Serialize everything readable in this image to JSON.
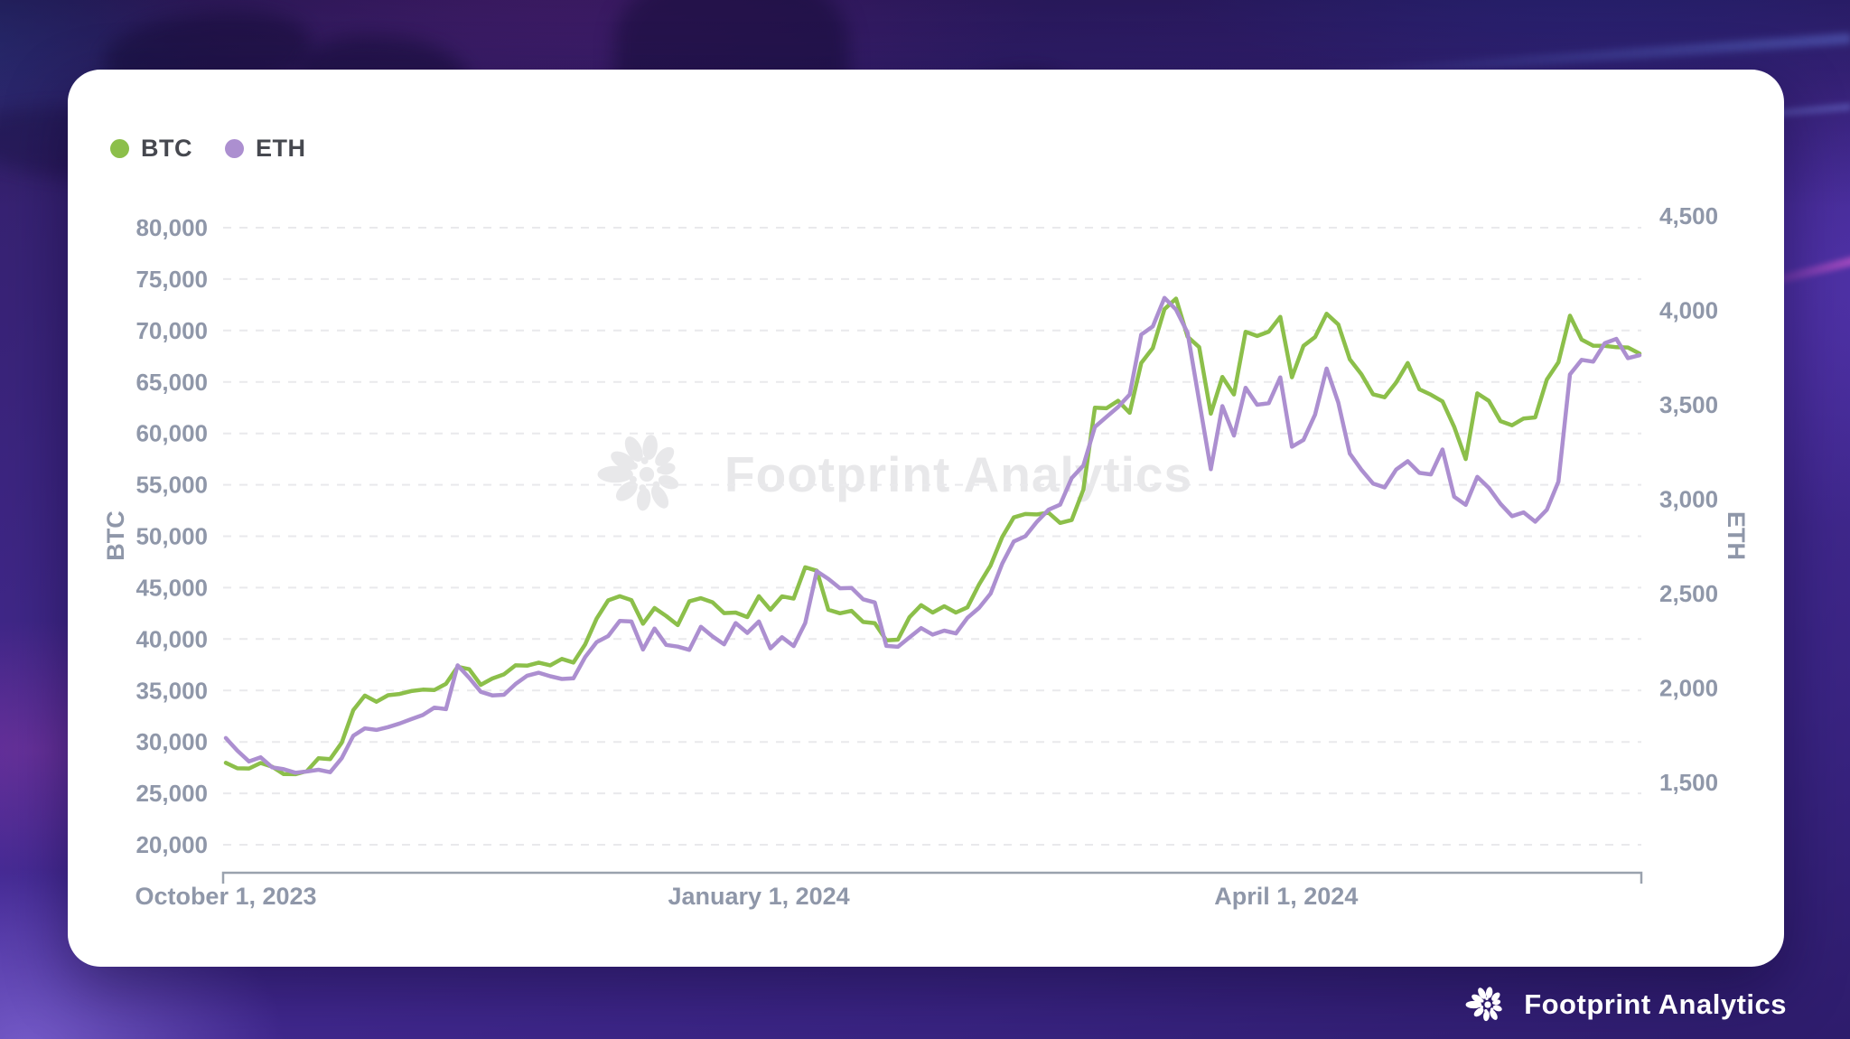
{
  "legend": {
    "items": [
      {
        "label": "BTC",
        "color": "#8cbf4a"
      },
      {
        "label": "ETH",
        "color": "#ac8fd0"
      }
    ]
  },
  "watermark": {
    "text": "Footprint Analytics"
  },
  "footer": {
    "brand": "Footprint Analytics"
  },
  "chart_data": {
    "type": "line",
    "title": "",
    "legend_position": "top-left",
    "grid": "dashed-horizontal",
    "x_start_date": "2023-10-01",
    "x_step_days": 2,
    "x_total_days": 244,
    "x_tick_labels": [
      "October 1, 2023",
      "January 1, 2024",
      "April 1, 2024"
    ],
    "x_tick_day_offsets": [
      0,
      92,
      183
    ],
    "left_axis": {
      "name": "BTC",
      "min": 20000,
      "max": 80000,
      "tick_step": 5000,
      "tick_labels": [
        "80,000",
        "75,000",
        "70,000",
        "65,000",
        "60,000",
        "55,000",
        "50,000",
        "45,000",
        "40,000",
        "35,000",
        "30,000",
        "25,000",
        "20,000"
      ]
    },
    "right_axis": {
      "name": "ETH",
      "min": 1500,
      "max": 4500,
      "tick_step": 500,
      "tick_labels": [
        "4,500",
        "4,000",
        "3,500",
        "3,000",
        "2,500",
        "2,000",
        "1,500"
      ]
    },
    "series": [
      {
        "name": "BTC",
        "axis": "left",
        "color": "#8cbf4a",
        "values": [
          27970,
          27430,
          27410,
          27950,
          27590,
          26870,
          26860,
          27160,
          28410,
          28330,
          29920,
          33090,
          34500,
          33910,
          34540,
          34660,
          34940,
          35080,
          35050,
          35650,
          37310,
          37070,
          35550,
          36160,
          36570,
          37450,
          37410,
          37710,
          37450,
          38070,
          37720,
          39470,
          41990,
          43760,
          44170,
          43790,
          41490,
          43020,
          42240,
          41360,
          43670,
          43970,
          43580,
          42520,
          42580,
          42140,
          44170,
          42850,
          44150,
          43940,
          46980,
          46640,
          42850,
          42510,
          42740,
          41660,
          41550,
          39880,
          39940,
          42120,
          43300,
          42580,
          43190,
          42580,
          43090,
          45300,
          47150,
          49920,
          51830,
          52160,
          52120,
          52280,
          51290,
          51570,
          54520,
          62500,
          62440,
          63170,
          62000,
          66850,
          68300,
          72080,
          73100,
          69400,
          68390,
          61910,
          65490,
          63780,
          69880,
          69470,
          69890,
          71330,
          65450,
          68510,
          69360,
          71630,
          70590,
          67190,
          65740,
          63800,
          63510,
          64940,
          66840,
          64280,
          63760,
          63110,
          60640,
          57500,
          63890,
          63160,
          61190,
          60790,
          61450,
          61550,
          65230,
          66910,
          71440,
          69120,
          68530,
          68510,
          68380,
          68350,
          67750
        ]
      },
      {
        "name": "ETH",
        "axis": "right",
        "color": "#ac8fd0",
        "values": [
          1735,
          1668,
          1611,
          1633,
          1580,
          1570,
          1551,
          1558,
          1567,
          1554,
          1628,
          1747,
          1786,
          1778,
          1793,
          1812,
          1835,
          1857,
          1896,
          1888,
          2120,
          2054,
          1980,
          1961,
          1964,
          2021,
          2065,
          2081,
          2062,
          2048,
          2051,
          2163,
          2243,
          2275,
          2355,
          2352,
          2204,
          2315,
          2228,
          2219,
          2202,
          2324,
          2273,
          2231,
          2344,
          2292,
          2352,
          2210,
          2269,
          2222,
          2344,
          2618,
          2578,
          2528,
          2530,
          2470,
          2453,
          2223,
          2218,
          2268,
          2317,
          2283,
          2304,
          2289,
          2372,
          2424,
          2500,
          2659,
          2776,
          2804,
          2881,
          2944,
          2971,
          3112,
          3178,
          3383,
          3436,
          3488,
          3554,
          3872,
          3915,
          4066,
          4004,
          3881,
          3520,
          3159,
          3493,
          3337,
          3590,
          3500,
          3508,
          3645,
          3278,
          3314,
          3448,
          3692,
          3512,
          3241,
          3156,
          3083,
          3062,
          3157,
          3201,
          3139,
          3131,
          3263,
          3013,
          2970,
          3118,
          3060,
          2975,
          2910,
          2930,
          2881,
          2944,
          3093,
          3661,
          3738,
          3728,
          3826,
          3849,
          3747,
          3762
        ]
      }
    ]
  }
}
